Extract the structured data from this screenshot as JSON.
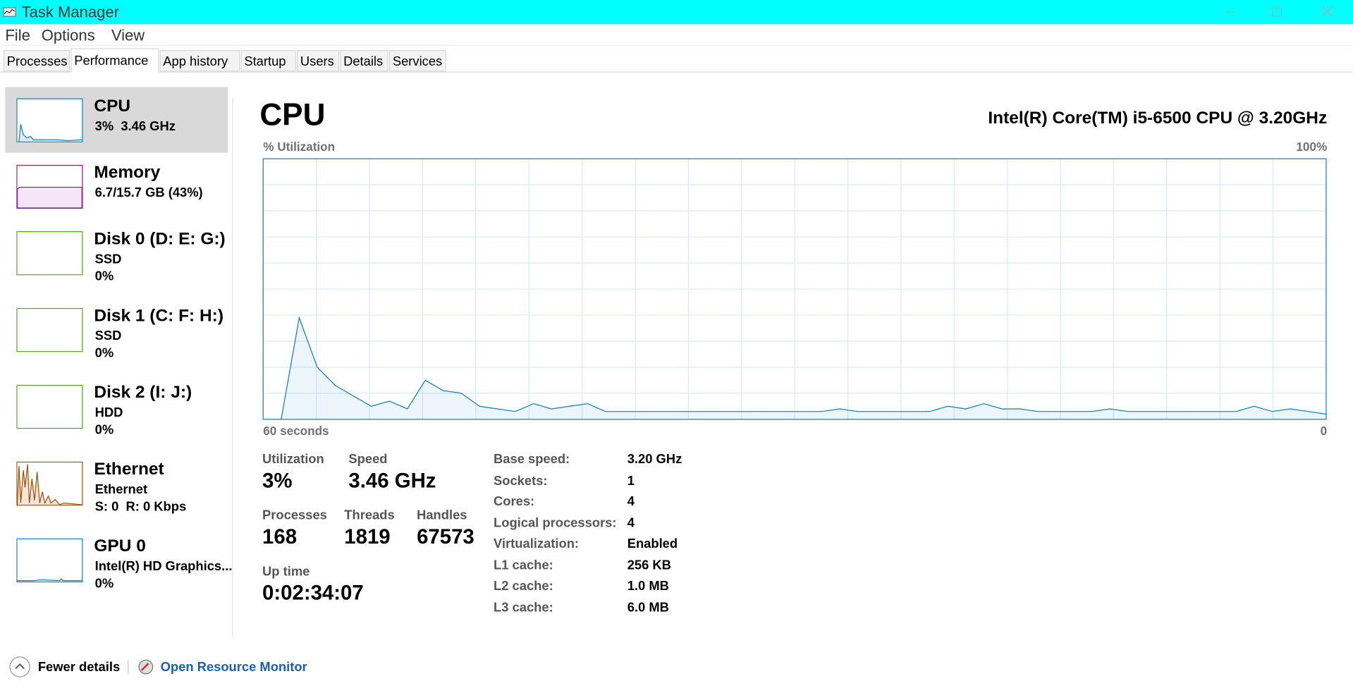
{
  "title_bar": {
    "title": "Task Manager"
  },
  "menu": [
    "File",
    "Options",
    "View"
  ],
  "tabs": [
    "Processes",
    "Performance",
    "App history",
    "Startup",
    "Users",
    "Details",
    "Services"
  ],
  "sidebar": [
    {
      "name": "CPU",
      "lines": [
        "3%  3.46 GHz"
      ]
    },
    {
      "name": "Memory",
      "lines": [
        "6.7/15.7 GB (43%)"
      ]
    },
    {
      "name": "Disk 0 (D: E: G:)",
      "lines": [
        "SSD",
        "0%"
      ]
    },
    {
      "name": "Disk 1 (C: F: H:)",
      "lines": [
        "SSD",
        "0%"
      ]
    },
    {
      "name": "Disk 2 (I: J:)",
      "lines": [
        "HDD",
        "0%"
      ]
    },
    {
      "name": "Ethernet",
      "lines": [
        "Ethernet",
        "S: 0  R: 0 Kbps"
      ]
    },
    {
      "name": "GPU 0",
      "lines": [
        "Intel(R) HD Graphics...",
        "0%"
      ]
    }
  ],
  "main": {
    "heading": "CPU",
    "processor": "Intel(R) Core(TM) i5-6500 CPU @ 3.20GHz",
    "graph": {
      "y_label": "% Utilization",
      "ylim": [
        0,
        100
      ],
      "y_max_label": "100%",
      "x_start_label": "60 seconds",
      "x_end_label": "0",
      "values": [
        null,
        0,
        39,
        20,
        13,
        9,
        5,
        7,
        4,
        15,
        11,
        10,
        5,
        4,
        3,
        6,
        4,
        5,
        6,
        3,
        3,
        3,
        3,
        3,
        3,
        3,
        3,
        3,
        3,
        3,
        3,
        3,
        4,
        3,
        3,
        3,
        3,
        3,
        5,
        4,
        6,
        4,
        4,
        3,
        3,
        3,
        3,
        4,
        3,
        3,
        3,
        3,
        3,
        3,
        3,
        5,
        3,
        4,
        3,
        2
      ]
    },
    "stats": [
      {
        "label": "Utilization",
        "value": "3%"
      },
      {
        "label": "Speed",
        "value": "3.46 GHz"
      },
      {
        "label": "Processes",
        "value": "168"
      },
      {
        "label": "Threads",
        "value": "1819"
      },
      {
        "label": "Handles",
        "value": "67573"
      },
      {
        "label": "Up time",
        "value": "0:02:34:07"
      }
    ],
    "details": [
      [
        "Base speed:",
        "3.20 GHz"
      ],
      [
        "Sockets:",
        "1"
      ],
      [
        "Cores:",
        "4"
      ],
      [
        "Logical processors:",
        "4"
      ],
      [
        "Virtualization:",
        "Enabled"
      ],
      [
        "L1 cache:",
        "256 KB"
      ],
      [
        "L2 cache:",
        "1.0 MB"
      ],
      [
        "L3 cache:",
        "6.0 MB"
      ]
    ]
  },
  "footer": {
    "fewer_details": "Fewer details",
    "resource_monitor": "Open Resource Monitor"
  }
}
